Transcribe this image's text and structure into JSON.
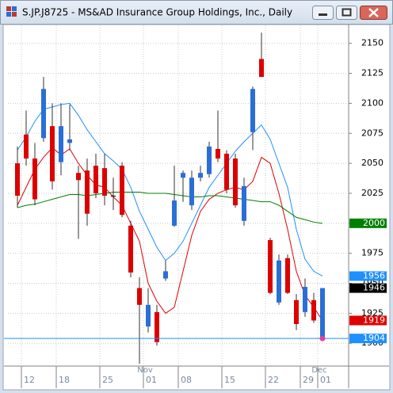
{
  "chart_data": {
    "type": "candlestick",
    "title": "S.JP.J8725 - MS&AD Insurance Group Holdings, Inc., Daily",
    "categories": [
      null,
      "12",
      null,
      null,
      null,
      "18",
      null,
      null,
      null,
      null,
      "25",
      null,
      null,
      null,
      null,
      "01",
      null,
      null,
      null,
      "08",
      null,
      null,
      null,
      null,
      "15",
      null,
      null,
      null,
      null,
      "22",
      null,
      null,
      null,
      "29",
      null,
      "01"
    ],
    "months": [
      null,
      null,
      null,
      null,
      null,
      null,
      null,
      null,
      null,
      null,
      null,
      null,
      null,
      null,
      null,
      "Nov",
      null,
      null,
      null,
      null,
      null,
      null,
      null,
      null,
      null,
      null,
      null,
      null,
      null,
      null,
      null,
      null,
      null,
      null,
      null,
      "Dec"
    ],
    "open": [
      2023,
      2054,
      2020,
      2112,
      2035,
      2081,
      2070,
      2036,
      2008,
      2025,
      2023,
      2023,
      2007,
      1959,
      1932,
      1932,
      1901,
      1960,
      2019,
      2042,
      2038,
      2042,
      2064,
      2054,
      2028,
      2015,
      2031,
      2112,
      2122,
      1942,
      1969,
      1942,
      1916,
      1947,
      1919,
      1946
    ],
    "high": [
      2064,
      2094,
      2067,
      2122,
      2100,
      2100,
      2099,
      2048,
      2054,
      2058,
      2058,
      2038,
      2051,
      2002,
      1955,
      1946,
      1932,
      1969,
      2048,
      2044,
      2044,
      2048,
      2068,
      2094,
      2061,
      2058,
      2038,
      2114,
      2159,
      1988,
      1974,
      1974,
      1941,
      1954,
      1942,
      1946
    ],
    "low": [
      2013,
      2048,
      2015,
      2068,
      2028,
      2040,
      2061,
      1987,
      1998,
      2021,
      2015,
      2011,
      2005,
      1955,
      1883,
      1909,
      1898,
      1952,
      1997,
      2018,
      2011,
      2035,
      2038,
      2051,
      2025,
      2013,
      1998,
      2061,
      2122,
      1941,
      1932,
      1941,
      1911,
      1922,
      1917,
      1903
    ],
    "close": [
      2050,
      2074,
      2054,
      2071,
      2081,
      2051,
      2067,
      2042,
      2044,
      2048,
      2046,
      2023,
      2048,
      1998,
      1946,
      1914,
      1926,
      1954,
      1998,
      2038,
      2015,
      2038,
      2041,
      2062,
      2058,
      2054,
      2002,
      2076,
      2137,
      1986,
      1934,
      1971,
      1936,
      1926,
      1936,
      1904
    ],
    "up_color": "#dd0000",
    "down_color": "#2a6ed8",
    "flat_color": "#000000",
    "series": [
      {
        "color": "#1e90ff",
        "values": [
          2061,
          2072,
          2085,
          2095,
          2097,
          2099,
          2100,
          2090,
          2078,
          2068,
          2058,
          2052,
          2045,
          2030,
          2010,
          1995,
          1980,
          1969,
          1975,
          1985,
          2000,
          2015,
          2030,
          2040,
          2050,
          2060,
          2068,
          2075,
          2082,
          2070,
          2050,
          2030,
          1995,
          1970,
          1960,
          1956
        ]
      },
      {
        "color": "#e00000",
        "values": [
          2015,
          2030,
          2045,
          2055,
          2063,
          2057,
          2062,
          2050,
          2040,
          2032,
          2030,
          2022,
          2015,
          2000,
          1985,
          1950,
          1935,
          1925,
          1930,
          1960,
          1990,
          2010,
          2020,
          2025,
          2028,
          2030,
          2028,
          2035,
          2055,
          2050,
          2025,
          1995,
          1960,
          1940,
          1930,
          1919
        ]
      },
      {
        "color": "#008000",
        "values": [
          2013,
          2015,
          2016,
          2018,
          2020,
          2022,
          2024,
          2024,
          2023,
          2024,
          2025,
          2026,
          2026,
          2026,
          2026,
          2025,
          2025,
          2025,
          2024,
          2023,
          2022,
          2022,
          2023,
          2023,
          2022,
          2021,
          2020,
          2019,
          2018,
          2018,
          2015,
          2010,
          2005,
          2003,
          2001,
          2000
        ]
      }
    ],
    "price_labels": [
      {
        "value": 2000,
        "color": "#008000"
      },
      {
        "value": 1956,
        "color": "#1e90ff"
      },
      {
        "value": 1946,
        "color": "#000000"
      },
      {
        "value": 1919,
        "color": "#e00000"
      },
      {
        "value": 1904,
        "color": "#1e90ff"
      }
    ],
    "current_price": 1904,
    "ylim": [
      1881,
      2165
    ],
    "yticks": [
      1900,
      1925,
      1950,
      1975,
      2000,
      2025,
      2050,
      2075,
      2100,
      2125,
      2150
    ],
    "grid": true
  }
}
